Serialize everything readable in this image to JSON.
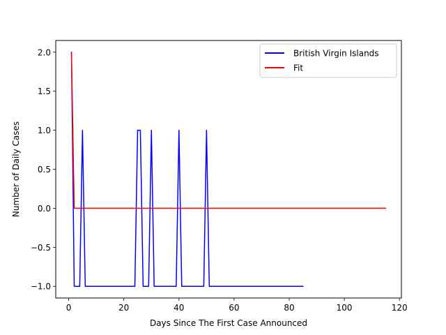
{
  "chart_data": {
    "type": "line",
    "xlabel": "Days Since The First Case Announced",
    "ylabel": "Number of Daily Cases",
    "xlim": [
      -4.7,
      120.7
    ],
    "ylim": [
      -1.15,
      2.15
    ],
    "xticks": [
      0,
      20,
      40,
      60,
      80,
      100,
      120
    ],
    "yticks": [
      -1.0,
      -0.5,
      0.0,
      0.5,
      1.0,
      1.5,
      2.0
    ],
    "xtick_labels": [
      "0",
      "20",
      "40",
      "60",
      "80",
      "100",
      "120"
    ],
    "ytick_labels": [
      "−1.0",
      "−0.5",
      "0.0",
      "0.5",
      "1.0",
      "1.5",
      "2.0"
    ],
    "grid": false,
    "legend_position": "upper right",
    "series": [
      {
        "name": "British Virgin Islands",
        "color": "#0000ff",
        "points": [
          [
            1,
            2
          ],
          [
            2,
            -1
          ],
          [
            3,
            -1
          ],
          [
            4,
            -1
          ],
          [
            5,
            1
          ],
          [
            6,
            -1
          ],
          [
            7,
            -1
          ],
          [
            8,
            -1
          ],
          [
            9,
            -1
          ],
          [
            10,
            -1
          ],
          [
            11,
            -1
          ],
          [
            12,
            -1
          ],
          [
            13,
            -1
          ],
          [
            14,
            -1
          ],
          [
            15,
            -1
          ],
          [
            16,
            -1
          ],
          [
            17,
            -1
          ],
          [
            18,
            -1
          ],
          [
            19,
            -1
          ],
          [
            20,
            -1
          ],
          [
            21,
            -1
          ],
          [
            22,
            -1
          ],
          [
            23,
            -1
          ],
          [
            24,
            -1
          ],
          [
            25,
            1
          ],
          [
            26,
            1
          ],
          [
            27,
            -1
          ],
          [
            28,
            -1
          ],
          [
            29,
            -1
          ],
          [
            30,
            1
          ],
          [
            31,
            -1
          ],
          [
            32,
            -1
          ],
          [
            33,
            -1
          ],
          [
            34,
            -1
          ],
          [
            35,
            -1
          ],
          [
            36,
            -1
          ],
          [
            37,
            -1
          ],
          [
            38,
            -1
          ],
          [
            39,
            -1
          ],
          [
            40,
            1
          ],
          [
            41,
            -1
          ],
          [
            42,
            -1
          ],
          [
            43,
            -1
          ],
          [
            44,
            -1
          ],
          [
            45,
            -1
          ],
          [
            46,
            -1
          ],
          [
            47,
            -1
          ],
          [
            48,
            -1
          ],
          [
            49,
            -1
          ],
          [
            50,
            1
          ],
          [
            51,
            -1
          ],
          [
            52,
            -1
          ],
          [
            53,
            -1
          ],
          [
            54,
            -1
          ],
          [
            55,
            -1
          ],
          [
            56,
            -1
          ],
          [
            57,
            -1
          ],
          [
            58,
            -1
          ],
          [
            59,
            -1
          ],
          [
            60,
            -1
          ],
          [
            61,
            -1
          ],
          [
            62,
            -1
          ],
          [
            63,
            -1
          ],
          [
            64,
            -1
          ],
          [
            65,
            -1
          ],
          [
            66,
            -1
          ],
          [
            67,
            -1
          ],
          [
            68,
            -1
          ],
          [
            69,
            -1
          ],
          [
            70,
            -1
          ],
          [
            71,
            -1
          ],
          [
            72,
            -1
          ],
          [
            73,
            -1
          ],
          [
            74,
            -1
          ],
          [
            75,
            -1
          ],
          [
            76,
            -1
          ],
          [
            77,
            -1
          ],
          [
            78,
            -1
          ],
          [
            79,
            -1
          ],
          [
            80,
            -1
          ],
          [
            81,
            -1
          ],
          [
            82,
            -1
          ],
          [
            83,
            -1
          ],
          [
            84,
            -1
          ],
          [
            85,
            -1
          ]
        ]
      },
      {
        "name": "Fit",
        "color": "#ff0000",
        "points": [
          [
            1,
            2
          ],
          [
            2,
            0
          ],
          [
            3,
            0
          ],
          [
            10,
            0
          ],
          [
            20,
            0
          ],
          [
            30,
            0
          ],
          [
            40,
            0
          ],
          [
            50,
            0
          ],
          [
            60,
            0
          ],
          [
            70,
            0
          ],
          [
            80,
            0
          ],
          [
            90,
            0
          ],
          [
            100,
            0
          ],
          [
            110,
            0
          ],
          [
            115,
            0
          ]
        ]
      }
    ]
  }
}
